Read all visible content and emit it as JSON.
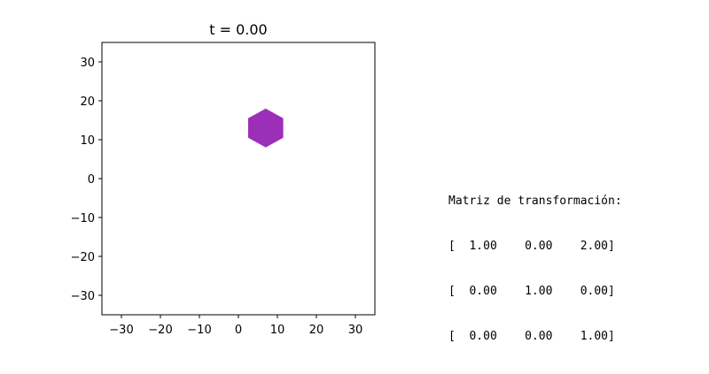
{
  "chart_data": {
    "type": "scatter",
    "title": "t = 0.00",
    "xlabel": "",
    "ylabel": "",
    "xlim": [
      -35,
      35
    ],
    "ylim": [
      -35,
      35
    ],
    "xticks": [
      -30,
      -20,
      -10,
      0,
      10,
      20,
      30
    ],
    "yticks": [
      -30,
      -20,
      -10,
      0,
      10,
      20,
      30
    ],
    "grid": false,
    "shape": {
      "kind": "hexagon",
      "color": "#9b2fb8",
      "vertices": [
        [
          7,
          18
        ],
        [
          11.5,
          15.5
        ],
        [
          11.5,
          10.5
        ],
        [
          7,
          8
        ],
        [
          2.5,
          10.5
        ],
        [
          2.5,
          15.5
        ]
      ]
    }
  },
  "matrix": {
    "heading": "Matriz de transformación:",
    "rows": [
      "[  1.00    0.00    2.00]",
      "[  0.00    1.00    0.00]",
      "[  0.00    0.00    1.00]"
    ]
  }
}
